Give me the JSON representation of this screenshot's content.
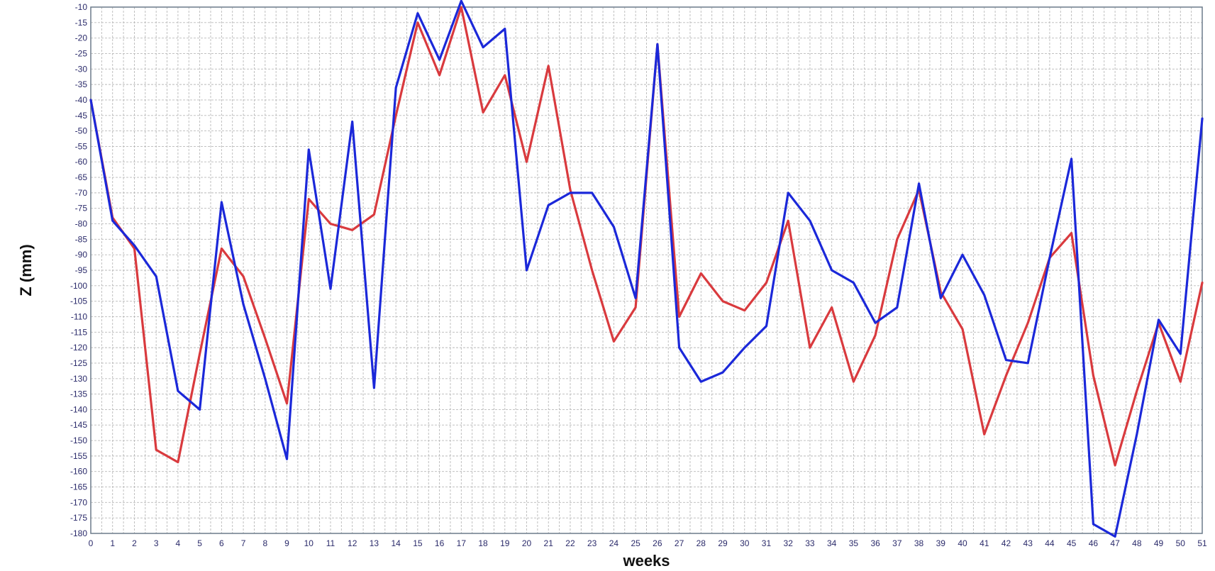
{
  "chart_data": {
    "type": "line",
    "xlabel": "weeks",
    "ylabel": "Z (mm)",
    "xlim": [
      0,
      51
    ],
    "ylim": [
      -180,
      -10
    ],
    "y_tick_step": 5,
    "grid": true,
    "legend": "none",
    "x": [
      0,
      1,
      2,
      3,
      4,
      5,
      6,
      7,
      8,
      9,
      10,
      11,
      12,
      13,
      14,
      15,
      16,
      17,
      18,
      19,
      20,
      21,
      22,
      23,
      24,
      25,
      26,
      27,
      28,
      29,
      30,
      31,
      32,
      33,
      34,
      35,
      36,
      37,
      38,
      39,
      40,
      41,
      42,
      43,
      44,
      45,
      46,
      47,
      48,
      49,
      50,
      51
    ],
    "series": [
      {
        "color": "#d93a3e",
        "values": [
          -40,
          -78,
          -88,
          -153,
          -157,
          -122,
          -88,
          -97,
          -117,
          -138,
          -72,
          -80,
          -82,
          -77,
          -45,
          -15,
          -32,
          -10,
          -44,
          -32,
          -60,
          -29,
          -69,
          -95,
          -118,
          -107,
          -22,
          -110,
          -96,
          -105,
          -108,
          -99,
          -79,
          -120,
          -107,
          -131,
          -116,
          -85,
          -69,
          -102,
          -114,
          -148,
          -129,
          -112,
          -91,
          -83,
          -129,
          -158,
          -134,
          -112,
          -131,
          -99
        ]
      },
      {
        "color": "#1b28d9",
        "values": [
          -40,
          -79,
          -87,
          -97,
          -134,
          -140,
          -73,
          -106,
          -130,
          -156,
          -56,
          -101,
          -47,
          -133,
          -36,
          -12,
          -27,
          -8,
          -23,
          -17,
          -95,
          -74,
          -70,
          -70,
          -81,
          -104,
          -22,
          -120,
          -131,
          -128,
          -120,
          -113,
          -70,
          -79,
          -95,
          -99,
          -112,
          -107,
          -67,
          -104,
          -90,
          -103,
          -124,
          -125,
          -91,
          -59,
          -177,
          -181,
          -148,
          -111,
          -122,
          -46
        ]
      }
    ]
  }
}
